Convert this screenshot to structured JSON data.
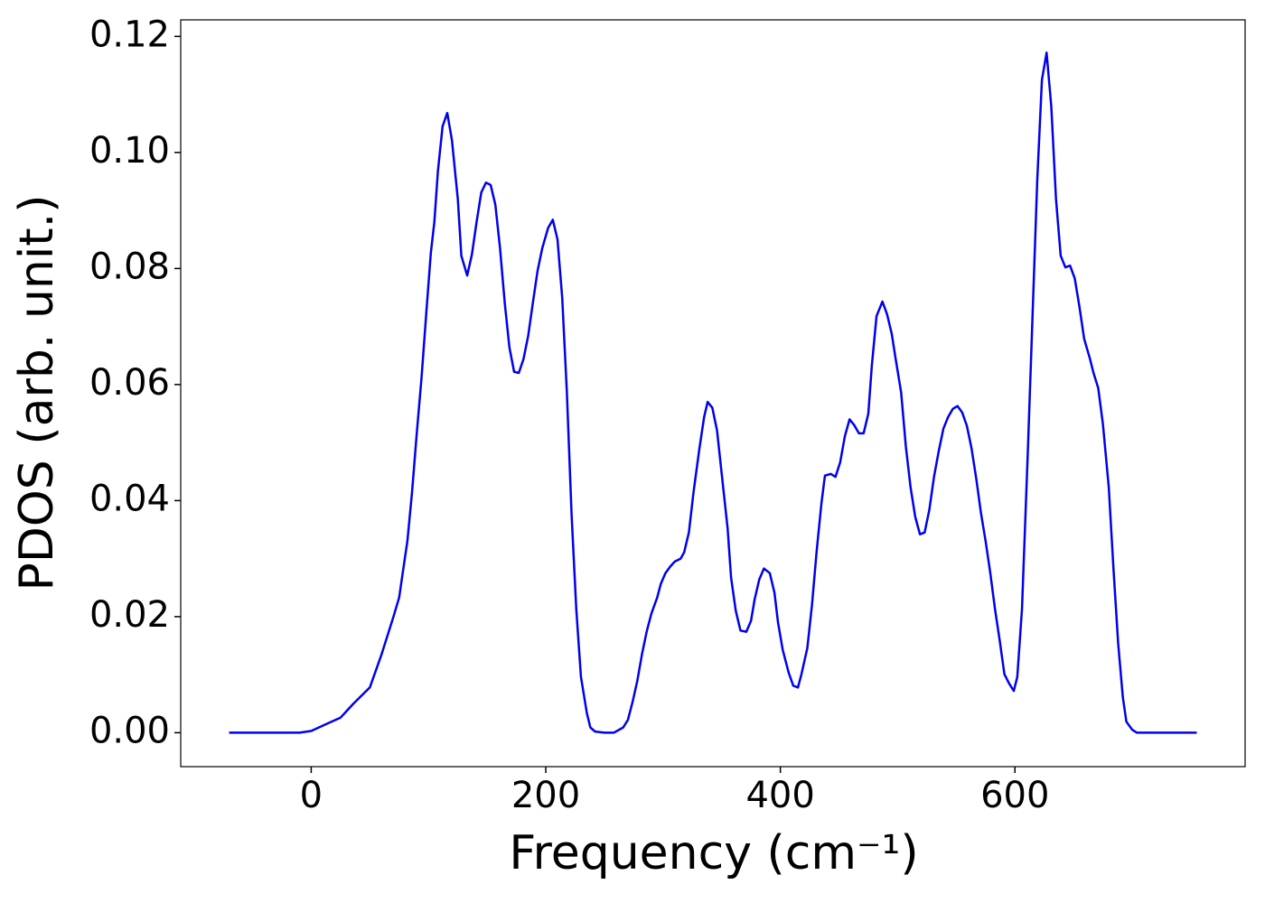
{
  "chart_data": {
    "type": "line",
    "xlabel": "Frequency (cm⁻¹)",
    "ylabel": "PDOS (arb. unit.)",
    "xlim": [
      -111.25,
      796.25
    ],
    "ylim": [
      -0.00585,
      0.12285
    ],
    "xticks": [
      0,
      200,
      400,
      600
    ],
    "yticks": [
      {
        "value": 0,
        "label": "0.00"
      },
      0.02,
      0.04,
      0.06,
      0.08,
      {
        "value": 0.1,
        "label": "0.10"
      },
      0.12
    ],
    "series": [
      {
        "color": "#0000ee",
        "x": [
          -70,
          -10,
          0,
          13,
          25,
          36,
          50,
          60,
          70,
          75,
          78,
          82,
          86,
          90,
          94,
          98,
          102,
          105,
          108,
          112,
          116,
          120,
          125,
          128,
          133,
          137,
          141,
          145,
          149,
          153,
          157,
          161,
          165,
          169,
          173,
          177,
          181,
          185,
          189,
          193,
          197,
          202,
          206,
          210,
          214,
          218,
          222,
          226,
          230,
          235,
          238,
          242,
          250,
          258,
          266,
          270,
          274,
          278,
          282,
          286,
          290,
          295,
          298,
          302,
          306,
          310,
          315,
          318,
          322,
          326,
          331,
          335,
          338,
          342,
          346,
          350,
          355,
          358,
          362,
          366,
          371,
          375,
          378,
          382,
          386,
          391,
          395,
          398,
          402,
          407,
          411,
          415,
          418,
          423,
          427,
          431,
          435,
          438,
          443,
          447,
          451,
          455,
          459,
          463,
          467,
          471,
          475,
          478,
          482,
          487,
          491,
          495,
          498,
          503,
          507,
          511,
          515,
          519,
          523,
          527,
          531,
          535,
          539,
          543,
          547,
          551,
          555,
          559,
          563,
          567,
          571,
          575,
          579,
          583,
          587,
          591,
          595,
          599,
          602,
          606,
          611,
          615,
          619,
          623,
          627,
          631,
          635,
          639,
          643,
          647,
          651,
          655,
          659,
          664,
          667,
          671,
          675,
          680,
          684,
          688,
          692,
          695,
          700,
          704,
          755
        ],
        "values": [
          0,
          0,
          0.0003,
          0.0015,
          0.0026,
          0.005,
          0.0078,
          0.0135,
          0.0199,
          0.0233,
          0.0275,
          0.033,
          0.0415,
          0.0516,
          0.061,
          0.072,
          0.0827,
          0.088,
          0.0967,
          0.1045,
          0.1068,
          0.1021,
          0.092,
          0.0822,
          0.0788,
          0.0824,
          0.088,
          0.0931,
          0.0948,
          0.0944,
          0.091,
          0.0835,
          0.0741,
          0.0664,
          0.0622,
          0.062,
          0.0644,
          0.0684,
          0.0741,
          0.0796,
          0.0835,
          0.087,
          0.0884,
          0.085,
          0.075,
          0.0586,
          0.0376,
          0.0213,
          0.0096,
          0.0034,
          0.0009,
          0.0002,
          0,
          0,
          0.0009,
          0.0022,
          0.0053,
          0.0089,
          0.0135,
          0.0174,
          0.0205,
          0.0233,
          0.0256,
          0.0275,
          0.0286,
          0.0295,
          0.03,
          0.0311,
          0.0345,
          0.0415,
          0.049,
          0.0544,
          0.057,
          0.056,
          0.0521,
          0.0446,
          0.0353,
          0.0267,
          0.021,
          0.0176,
          0.0174,
          0.0193,
          0.0229,
          0.0264,
          0.0283,
          0.0275,
          0.0241,
          0.019,
          0.0143,
          0.0104,
          0.0081,
          0.0078,
          0.0101,
          0.0146,
          0.0221,
          0.0314,
          0.0395,
          0.0443,
          0.0446,
          0.0441,
          0.0466,
          0.0511,
          0.054,
          0.053,
          0.0516,
          0.0516,
          0.055,
          0.0633,
          0.0718,
          0.0743,
          0.0721,
          0.0687,
          0.0648,
          0.0586,
          0.0493,
          0.0423,
          0.0372,
          0.0342,
          0.0345,
          0.0384,
          0.0441,
          0.0485,
          0.0524,
          0.0544,
          0.0558,
          0.0563,
          0.0552,
          0.0529,
          0.049,
          0.0438,
          0.0379,
          0.033,
          0.0275,
          0.0213,
          0.0159,
          0.0101,
          0.0085,
          0.0072,
          0.0096,
          0.0213,
          0.0485,
          0.0718,
          0.0951,
          0.1125,
          0.1172,
          0.1079,
          0.092,
          0.0822,
          0.0802,
          0.0805,
          0.0783,
          0.0734,
          0.0679,
          0.0644,
          0.062,
          0.0594,
          0.0532,
          0.0423,
          0.0283,
          0.0154,
          0.0061,
          0.0019,
          0.0005,
          0,
          0
        ]
      }
    ]
  }
}
